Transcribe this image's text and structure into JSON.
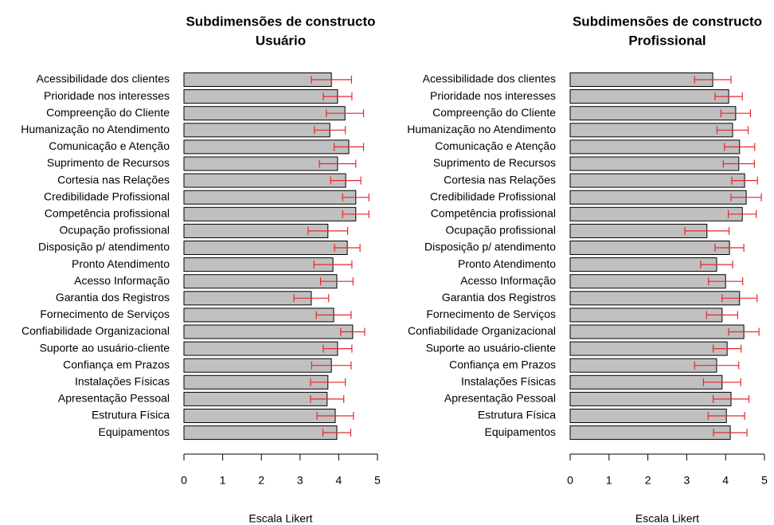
{
  "chart_data": [
    {
      "type": "bar",
      "orientation": "horizontal",
      "title": "Subdimensões de constructo",
      "subtitle": "Usuário",
      "xlabel": "Escala Likert",
      "categories": [
        "Acessibilidade dos clientes",
        "Prioridade nos interesses",
        "Compreenção do Cliente",
        "Humanização no Atendimento",
        "Comunicação e Atenção",
        "Suprimento de Recursos",
        "Cortesia nas Relações",
        "Credibilidade Profissional",
        "Competência profissional",
        "Ocupação profissional",
        "Disposição p/ atendimento",
        "Pronto Atendimento",
        "Acesso Informação",
        "Garantia dos Registros",
        "Fornecimento de Serviços",
        "Confiabilidade Organizacional",
        "Suporte ao usuário-cliente",
        "Confiança em Prazos",
        "Instalações Físicas",
        "Apresentação Pessoal",
        "Estrutura Física",
        "Equipamentos"
      ],
      "values": [
        3.81,
        3.97,
        4.16,
        3.77,
        4.26,
        3.97,
        4.18,
        4.44,
        4.44,
        3.72,
        4.22,
        3.85,
        3.95,
        3.29,
        3.87,
        4.36,
        3.97,
        3.81,
        3.72,
        3.7,
        3.91,
        3.95
      ],
      "errors": [
        0.52,
        0.37,
        0.48,
        0.4,
        0.38,
        0.47,
        0.39,
        0.34,
        0.34,
        0.51,
        0.33,
        0.49,
        0.42,
        0.45,
        0.45,
        0.31,
        0.37,
        0.51,
        0.45,
        0.43,
        0.47,
        0.36
      ],
      "color": "#c0c0c0",
      "error_color": "#e8262b",
      "xlim": [
        0,
        5
      ],
      "xticks": [
        0,
        1,
        2,
        3,
        4,
        5
      ]
    },
    {
      "type": "bar",
      "orientation": "horizontal",
      "title": "Subdimensões de constructo",
      "subtitle": "Profissional",
      "xlabel": "Escala Likert",
      "categories": [
        "Acessibilidade dos clientes",
        "Prioridade nos interesses",
        "Compreenção do Cliente",
        "Humanização no Atendimento",
        "Comunicação e Atenção",
        "Suprimento de Recursos",
        "Cortesia nas Relações",
        "Credibilidade Profissional",
        "Competência profissional",
        "Ocupação profissional",
        "Disposição p/ atendimento",
        "Pronto Atendimento",
        "Acesso Informação",
        "Garantia dos Registros",
        "Fornecimento de Serviços",
        "Confiabilidade Organizacional",
        "Suporte ao usuário-cliente",
        "Confiança em Prazos",
        "Instalações Físicas",
        "Apresentação Pessoal",
        "Estrutura Física",
        "Equipamentos"
      ],
      "values": [
        3.67,
        4.08,
        4.26,
        4.18,
        4.36,
        4.34,
        4.49,
        4.53,
        4.43,
        3.52,
        4.1,
        3.77,
        4.0,
        4.36,
        3.91,
        4.47,
        4.04,
        3.77,
        3.91,
        4.14,
        4.02,
        4.12
      ],
      "errors": [
        0.47,
        0.35,
        0.38,
        0.4,
        0.39,
        0.4,
        0.33,
        0.39,
        0.36,
        0.57,
        0.37,
        0.41,
        0.44,
        0.45,
        0.4,
        0.39,
        0.36,
        0.57,
        0.48,
        0.46,
        0.47,
        0.43
      ],
      "color": "#c0c0c0",
      "error_color": "#e8262b",
      "xlim": [
        0,
        5
      ],
      "xticks": [
        0,
        1,
        2,
        3,
        4,
        5
      ]
    }
  ]
}
